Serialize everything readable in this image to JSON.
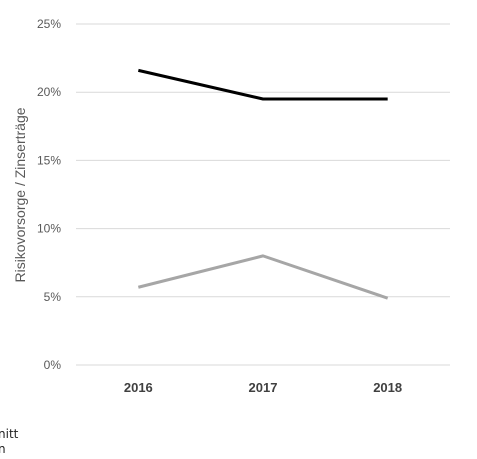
{
  "chart_data": {
    "type": "line",
    "categories": [
      "2016",
      "2017",
      "2018"
    ],
    "series": [
      {
        "values": [
          21.6,
          19.5,
          19.5
        ],
        "color": "#000000"
      },
      {
        "values": [
          5.7,
          8.0,
          4.9
        ],
        "color": "#a6a6a6"
      }
    ],
    "ylabel": "Risikovorsorge / Zinserträge",
    "ylim": [
      0,
      25
    ],
    "yticks": [
      0,
      5,
      10,
      15,
      20,
      25
    ],
    "ytick_labels": [
      "0%",
      "5%",
      "10%",
      "15%",
      "20%",
      "25%"
    ],
    "grid": true,
    "legend": {
      "placement": "bottom-left, cropped",
      "fragments": [
        "nitt",
        "n"
      ]
    }
  }
}
